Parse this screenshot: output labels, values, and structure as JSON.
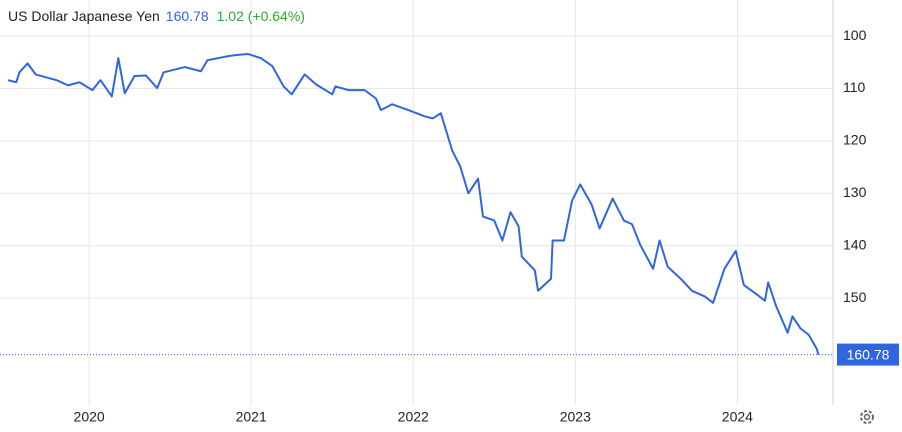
{
  "chart_data": {
    "type": "line",
    "title": "US Dollar Japanese Yen",
    "price": 160.78,
    "change_label": "1.02 (+0.64%)",
    "x": [
      2019.5,
      2019.55,
      2019.57,
      2019.62,
      2019.67,
      2019.75,
      2019.8,
      2019.87,
      2019.94,
      2020.02,
      2020.07,
      2020.14,
      2020.18,
      2020.22,
      2020.28,
      2020.35,
      2020.42,
      2020.46,
      2020.59,
      2020.69,
      2020.73,
      2020.86,
      2020.91,
      2020.98,
      2021.06,
      2021.13,
      2021.2,
      2021.25,
      2021.33,
      2021.4,
      2021.5,
      2021.52,
      2021.6,
      2021.7,
      2021.77,
      2021.8,
      2021.87,
      2021.97,
      2022.07,
      2022.12,
      2022.17,
      2022.24,
      2022.29,
      2022.34,
      2022.4,
      2022.43,
      2022.5,
      2022.55,
      2022.6,
      2022.65,
      2022.67,
      2022.75,
      2022.77,
      2022.85,
      2022.86,
      2022.93,
      2022.98,
      2023.03,
      2023.1,
      2023.15,
      2023.23,
      2023.3,
      2023.35,
      2023.4,
      2023.48,
      2023.52,
      2023.57,
      2023.65,
      2023.72,
      2023.8,
      2023.85,
      2023.92,
      2023.99,
      2024.04,
      2024.12,
      2024.17,
      2024.19,
      2024.24,
      2024.31,
      2024.34,
      2024.39,
      2024.44,
      2024.49,
      2024.5
    ],
    "series": [
      {
        "name": "USDJPY",
        "color": "#2f66e0",
        "values": [
          108.4,
          108.8,
          106.9,
          105.2,
          107.3,
          108.0,
          108.4,
          109.4,
          108.8,
          110.3,
          108.4,
          111.5,
          104.2,
          110.9,
          107.6,
          107.5,
          109.9,
          106.9,
          105.9,
          106.7,
          104.6,
          103.8,
          103.6,
          103.4,
          104.2,
          105.7,
          109.6,
          111.1,
          107.3,
          109.2,
          111.1,
          109.6,
          110.3,
          110.3,
          111.9,
          114.1,
          113.0,
          114.1,
          115.3,
          115.7,
          114.7,
          121.8,
          124.9,
          130.0,
          127.2,
          134.4,
          135.2,
          139.0,
          133.6,
          136.3,
          142.1,
          144.7,
          148.6,
          146.3,
          139.0,
          139.0,
          131.4,
          128.3,
          132.1,
          136.7,
          131.0,
          135.2,
          135.9,
          139.8,
          144.4,
          139.0,
          144.0,
          146.3,
          148.6,
          149.7,
          150.9,
          144.4,
          141.0,
          147.5,
          149.3,
          150.5,
          147.0,
          151.6,
          156.6,
          153.5,
          155.8,
          157.0,
          159.7,
          160.78
        ]
      }
    ],
    "xlim": [
      2019.45,
      2024.59
    ],
    "xticks": [
      2020,
      2021,
      2022,
      2023,
      2024
    ],
    "ylim": [
      170.4,
      93.1
    ],
    "yticks": [
      100,
      110,
      120,
      130,
      140,
      150
    ],
    "grid": true,
    "badge_color": "#2f66e0"
  }
}
